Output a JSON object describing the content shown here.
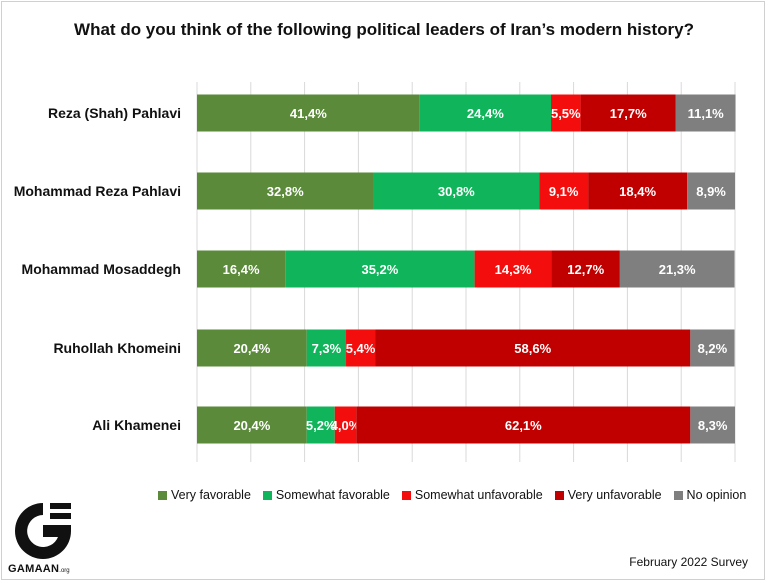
{
  "chart_data": {
    "type": "bar",
    "orientation": "horizontal",
    "stacked": true,
    "title": "What do you think of the following political leaders of Iran’s modern history?",
    "categories": [
      "Reza (Shah) Pahlavi",
      "Mohammad Reza Pahlavi",
      "Mohammad Mosaddegh",
      "Ruhollah Khomeini",
      "Ali Khamenei"
    ],
    "series": [
      {
        "name": "Very favorable",
        "color": "#5a8a3a",
        "values": [
          41.4,
          32.8,
          16.4,
          20.4,
          20.4
        ],
        "labels": [
          "41,4%",
          "32,8%",
          "16,4%",
          "20,4%",
          "20,4%"
        ]
      },
      {
        "name": "Somewhat favorable",
        "color": "#10b45a",
        "values": [
          24.4,
          30.8,
          35.2,
          7.3,
          5.2
        ],
        "labels": [
          "24,4%",
          "30,8%",
          "35,2%",
          "7,3%",
          "5,2%"
        ]
      },
      {
        "name": "Somewhat unfavorable",
        "color": "#f40d0d",
        "values": [
          5.5,
          9.1,
          14.3,
          5.4,
          4.0
        ],
        "labels": [
          "5,5%",
          "9,1%",
          "14,3%",
          "5,4%",
          "4,0%"
        ]
      },
      {
        "name": "Very unfavorable",
        "color": "#c00000",
        "values": [
          17.7,
          18.4,
          12.7,
          58.6,
          62.1
        ],
        "labels": [
          "17,7%",
          "18,4%",
          "12,7%",
          "58,6%",
          "62,1%"
        ]
      },
      {
        "name": "No opinion",
        "color": "#7f7f7f",
        "values": [
          11.1,
          8.9,
          21.3,
          8.2,
          8.3
        ],
        "labels": [
          "11,1%",
          "8,9%",
          "21,3%",
          "8,2%",
          "8,3%"
        ]
      }
    ],
    "xlim": [
      0,
      100
    ],
    "grid": true,
    "legend_position": "bottom"
  },
  "branding": {
    "logo_icon": "gamaan-logo-icon",
    "name": "GAMAAN",
    "domain": ".org"
  },
  "footnote": "February 2022 Survey"
}
